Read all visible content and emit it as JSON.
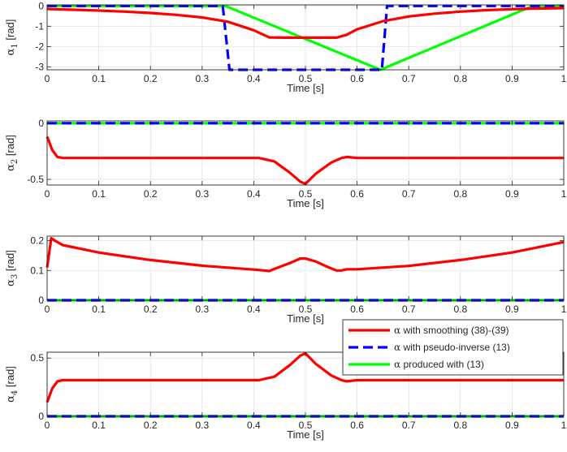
{
  "chart_data": [
    {
      "type": "line",
      "xlabel": "Time [s]",
      "ylabel_symbol": "α",
      "ylabel_sub": "1",
      "ylabel_unit": " [rad]",
      "xlim": [
        0,
        1
      ],
      "ylim": [
        -3.1416,
        0.05
      ],
      "yticks": [
        0,
        -1,
        -2,
        -3
      ],
      "ytick_labels": [
        "0",
        "-1",
        "-2",
        "-3"
      ],
      "xticks": [
        0,
        0.1,
        0.2,
        0.3,
        0.4,
        0.5,
        0.6,
        0.7,
        0.8,
        0.9,
        1
      ],
      "xtick_labels": [
        "0",
        "0.1",
        "0.2",
        "0.3",
        "0.4",
        "0.5",
        "0.6",
        "0.7",
        "0.8",
        "0.9",
        "1"
      ],
      "grid": true,
      "series": [
        {
          "name": "smoothing",
          "x": [
            0,
            0.05,
            0.1,
            0.15,
            0.2,
            0.25,
            0.3,
            0.35,
            0.4,
            0.43,
            0.46,
            0.5,
            0.56,
            0.58,
            0.6,
            0.65,
            0.7,
            0.75,
            0.8,
            0.85,
            0.9,
            0.95,
            1
          ],
          "y": [
            -0.15,
            -0.19,
            -0.23,
            -0.28,
            -0.35,
            -0.44,
            -0.57,
            -0.78,
            -1.2,
            -1.55,
            -1.56,
            -1.56,
            -1.56,
            -1.42,
            -1.15,
            -0.75,
            -0.52,
            -0.38,
            -0.28,
            -0.21,
            -0.16,
            -0.13,
            -0.11
          ]
        },
        {
          "name": "pseudo-inverse",
          "x": [
            0,
            0.34,
            0.353,
            0.648,
            0.658,
            1
          ],
          "y": [
            0,
            0,
            -3.14,
            -3.14,
            0,
            0
          ]
        },
        {
          "name": "produced",
          "x": [
            0,
            0.345,
            0.645,
            0.94,
            1
          ],
          "y": [
            0,
            0,
            -3.14,
            0,
            0
          ]
        }
      ]
    },
    {
      "type": "line",
      "xlabel": "Time [s]",
      "ylabel_symbol": "α",
      "ylabel_sub": "2",
      "ylabel_unit": " [rad]",
      "xlim": [
        0,
        1
      ],
      "ylim": [
        -0.55,
        0.02
      ],
      "yticks": [
        0,
        -0.5
      ],
      "ytick_labels": [
        "0",
        "-0.5"
      ],
      "xticks": [
        0,
        0.1,
        0.2,
        0.3,
        0.4,
        0.5,
        0.6,
        0.7,
        0.8,
        0.9,
        1
      ],
      "xtick_labels": [
        "0",
        "0.1",
        "0.2",
        "0.3",
        "0.4",
        "0.5",
        "0.6",
        "0.7",
        "0.8",
        "0.9",
        "1"
      ],
      "grid": true,
      "series": [
        {
          "name": "smoothing",
          "x": [
            0,
            0.01,
            0.02,
            0.03,
            0.1,
            0.2,
            0.3,
            0.41,
            0.42,
            0.44,
            0.47,
            0.49,
            0.5,
            0.52,
            0.55,
            0.57,
            0.58,
            0.6,
            0.7,
            0.8,
            0.9,
            1
          ],
          "y": [
            -0.12,
            -0.24,
            -0.3,
            -0.31,
            -0.31,
            -0.31,
            -0.31,
            -0.31,
            -0.32,
            -0.34,
            -0.44,
            -0.52,
            -0.54,
            -0.45,
            -0.35,
            -0.31,
            -0.3,
            -0.31,
            -0.31,
            -0.31,
            -0.31,
            -0.31
          ]
        },
        {
          "name": "pseudo-inverse",
          "x": [
            0,
            1
          ],
          "y": [
            0,
            0
          ]
        },
        {
          "name": "produced",
          "x": [
            0,
            1
          ],
          "y": [
            0,
            0
          ]
        }
      ]
    },
    {
      "type": "line",
      "xlabel": "Time [s]",
      "ylabel_symbol": "α",
      "ylabel_sub": "3",
      "ylabel_unit": " [rad]",
      "xlim": [
        0,
        1
      ],
      "ylim": [
        0,
        0.215
      ],
      "yticks": [
        0,
        0.1,
        0.2
      ],
      "ytick_labels": [
        "0",
        "0.1",
        "0.2"
      ],
      "xticks": [
        0,
        0.1,
        0.2,
        0.3,
        0.4,
        0.5,
        0.6,
        0.7,
        0.8,
        0.9,
        1
      ],
      "xtick_labels": [
        "0",
        "0.1",
        "0.2",
        "0.3",
        "0.4",
        "0.5",
        "0.6",
        "0.7",
        "0.8",
        "0.9",
        "1"
      ],
      "grid": true,
      "series": [
        {
          "name": "smoothing",
          "x": [
            0,
            0.008,
            0.015,
            0.03,
            0.1,
            0.2,
            0.3,
            0.4,
            0.42,
            0.43,
            0.44,
            0.47,
            0.49,
            0.5,
            0.52,
            0.54,
            0.56,
            0.57,
            0.58,
            0.6,
            0.7,
            0.8,
            0.9,
            1
          ],
          "y": [
            0.11,
            0.208,
            0.2,
            0.185,
            0.16,
            0.135,
            0.116,
            0.103,
            0.1,
            0.098,
            0.105,
            0.125,
            0.14,
            0.14,
            0.13,
            0.114,
            0.1,
            0.1,
            0.104,
            0.104,
            0.115,
            0.135,
            0.16,
            0.195
          ]
        },
        {
          "name": "pseudo-inverse",
          "x": [
            0,
            1
          ],
          "y": [
            0,
            0
          ]
        },
        {
          "name": "produced",
          "x": [
            0,
            1
          ],
          "y": [
            0,
            0
          ]
        }
      ]
    },
    {
      "type": "line",
      "xlabel": "Time [s]",
      "ylabel_symbol": "α",
      "ylabel_sub": "4",
      "ylabel_unit": " [rad]",
      "xlim": [
        0,
        1
      ],
      "ylim": [
        0,
        0.55
      ],
      "yticks": [
        0,
        0.5
      ],
      "ytick_labels": [
        "0",
        "0.5"
      ],
      "xticks": [
        0,
        0.1,
        0.2,
        0.3,
        0.4,
        0.5,
        0.6,
        0.7,
        0.8,
        0.9,
        1
      ],
      "xtick_labels": [
        "0",
        "0.1",
        "0.2",
        "0.3",
        "0.4",
        "0.5",
        "0.6",
        "0.7",
        "0.8",
        "0.9",
        "1"
      ],
      "grid": true,
      "series": [
        {
          "name": "smoothing",
          "x": [
            0,
            0.01,
            0.02,
            0.03,
            0.1,
            0.2,
            0.3,
            0.41,
            0.42,
            0.44,
            0.47,
            0.49,
            0.5,
            0.52,
            0.55,
            0.57,
            0.58,
            0.6,
            0.7,
            0.8,
            0.9,
            1
          ],
          "y": [
            0.12,
            0.24,
            0.3,
            0.31,
            0.31,
            0.31,
            0.31,
            0.31,
            0.32,
            0.34,
            0.44,
            0.52,
            0.54,
            0.45,
            0.35,
            0.31,
            0.3,
            0.31,
            0.31,
            0.31,
            0.31,
            0.31
          ]
        },
        {
          "name": "pseudo-inverse",
          "x": [
            0,
            1
          ],
          "y": [
            0,
            0
          ]
        },
        {
          "name": "produced",
          "x": [
            0,
            1
          ],
          "y": [
            0,
            0
          ]
        }
      ]
    }
  ],
  "series_styles": {
    "smoothing": {
      "color": "#ff0000",
      "dash": "none"
    },
    "pseudo-inverse": {
      "color": "#0000ff",
      "dash": "12 6"
    },
    "produced": {
      "color": "#00ff00",
      "dash": "none"
    }
  },
  "legend": {
    "position": "inside-bottom-right",
    "entries": [
      {
        "series": "smoothing",
        "prefix": "α",
        "text": " with smoothing (38)-(39)"
      },
      {
        "series": "pseudo-inverse",
        "prefix": "α",
        "text": " with pseudo-inverse (13)"
      },
      {
        "series": "produced",
        "prefix": "α",
        "text": " produced with (13)"
      }
    ]
  }
}
